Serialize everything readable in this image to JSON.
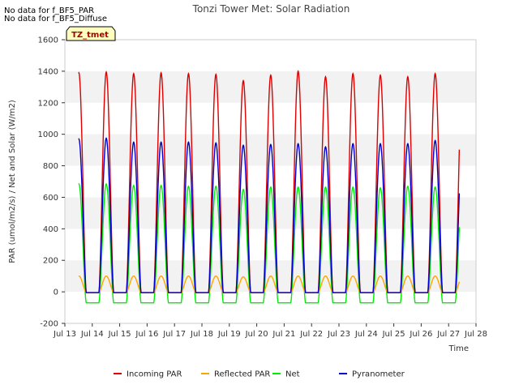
{
  "notes": [
    "No data for f_BF5_PAR",
    "No data for f_BF5_Diffuse"
  ],
  "tag": "TZ_tmet",
  "chart_data": {
    "type": "line",
    "title": "Tonzi Tower Met: Solar Radiation",
    "xlabel": "Time",
    "ylabel": "PAR (umol/m2/s) / Net and Solar (W/m2)",
    "xlim": [
      13,
      28
    ],
    "ylim": [
      -200,
      1600
    ],
    "x_ticks": [
      "Jul 13",
      "Jul 14",
      "Jul 15",
      "Jul 16",
      "Jul 17",
      "Jul 18",
      "Jul 19",
      "Jul 20",
      "Jul 21",
      "Jul 22",
      "Jul 23",
      "Jul 24",
      "Jul 25",
      "Jul 26",
      "Jul 27",
      "Jul 28"
    ],
    "y_ticks": [
      -200,
      0,
      200,
      400,
      600,
      800,
      1000,
      1200,
      1400,
      1600
    ],
    "grid": "horizontal bands",
    "legend_position": "bottom",
    "series": [
      {
        "name": "Incoming PAR",
        "color": "#dd0000",
        "night_value": -5,
        "day_peaks": [
          1390,
          1395,
          1385,
          1390,
          1385,
          1380,
          1340,
          1375,
          1400,
          1365,
          1385,
          1375,
          1365,
          1385
        ]
      },
      {
        "name": "Reflected PAR",
        "color": "#ffa500",
        "night_value": -5,
        "day_peaks": [
          100,
          100,
          100,
          100,
          100,
          100,
          95,
          100,
          100,
          100,
          100,
          100,
          100,
          100
        ]
      },
      {
        "name": "Net",
        "color": "#00ee00",
        "night_value": -70,
        "day_peaks": [
          685,
          685,
          675,
          675,
          670,
          670,
          650,
          665,
          665,
          665,
          665,
          660,
          670,
          665
        ]
      },
      {
        "name": "Pyranometer",
        "color": "#0000cc",
        "night_value": -5,
        "day_peaks": [
          970,
          975,
          950,
          950,
          950,
          945,
          930,
          935,
          940,
          920,
          940,
          940,
          940,
          960
        ]
      }
    ]
  }
}
